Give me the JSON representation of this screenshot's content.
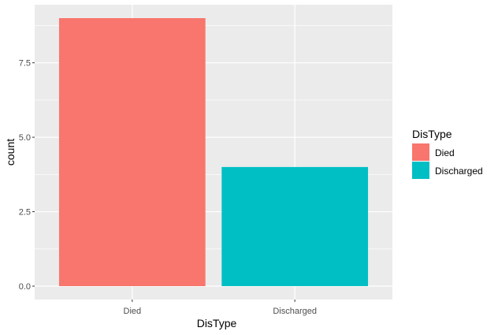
{
  "chart_data": {
    "type": "bar",
    "categories": [
      "Died",
      "Discharged"
    ],
    "values": [
      9,
      4
    ],
    "xlabel": "DisType",
    "ylabel": "count",
    "ylim": [
      -0.45,
      9.45
    ],
    "yticks": [
      0,
      2.5,
      5,
      7.5
    ],
    "ytick_labels": [
      "0.0",
      "2.5",
      "5.0",
      "7.5"
    ],
    "grid": true,
    "legend": {
      "title": "DisType",
      "placement": "right",
      "entries": [
        "Died",
        "Discharged"
      ]
    },
    "colors": {
      "Died": "#F8766D",
      "Discharged": "#00BFC4",
      "panel_background": "#EBEBEB",
      "grid_line": "#FFFFFF"
    }
  }
}
